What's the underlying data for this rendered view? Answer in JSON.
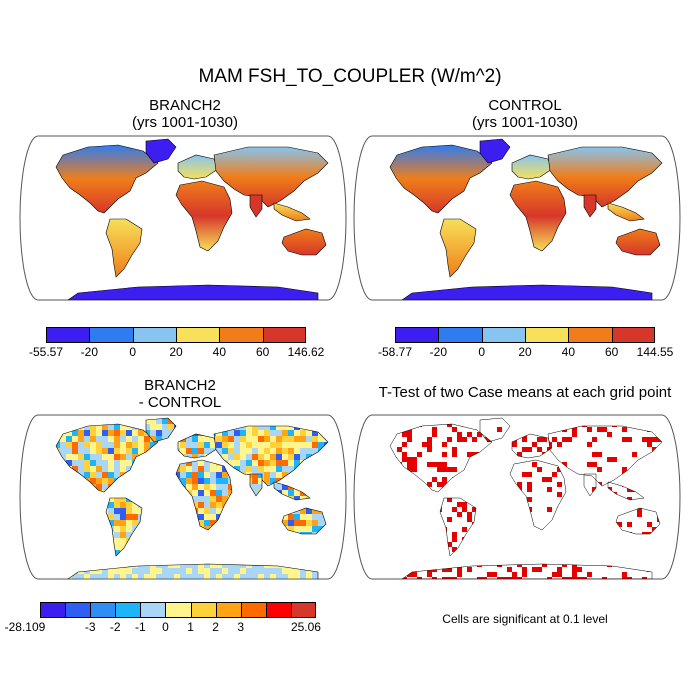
{
  "title": "MAM FSH_TO_COUPLER (W/m^2)",
  "colors": {
    "abs_scale": [
      "#3c1ef0",
      "#2f7cf0",
      "#87c4ef",
      "#f7e05a",
      "#f07d19",
      "#d6372a"
    ],
    "diff_scale": [
      "#3c1ef0",
      "#2f5ef5",
      "#2f8ef5",
      "#1eb4fa",
      "#a9d6f7",
      "#fff58c",
      "#ffd23c",
      "#ffa314",
      "#ff6a00",
      "#ff0000",
      "#d6372a"
    ],
    "ttest": "#e60000",
    "ocean": "#ffffff",
    "coast": "#000000"
  },
  "panels": {
    "branch2": {
      "title_line1": "BRANCH2",
      "title_line2": "(yrs 1001-1030)",
      "colorbar_ticks": [
        "-55.57",
        "-20",
        "0",
        "20",
        "40",
        "60",
        "146.62"
      ]
    },
    "control": {
      "title_line1": "CONTROL",
      "title_line2": "(yrs 1001-1030)",
      "colorbar_ticks": [
        "-58.77",
        "-20",
        "0",
        "20",
        "40",
        "60",
        "144.55"
      ]
    },
    "difference": {
      "title_line1": "BRANCH2",
      "title_line2": "- CONTROL",
      "colorbar_ticks": [
        "-28.109",
        "-3",
        "-2",
        "-1",
        "0",
        "1",
        "2",
        "3",
        "25.06"
      ]
    },
    "ttest": {
      "title": "T-Test of two Case means at each grid point",
      "note": "Cells are significant at 0.1 level"
    }
  }
}
